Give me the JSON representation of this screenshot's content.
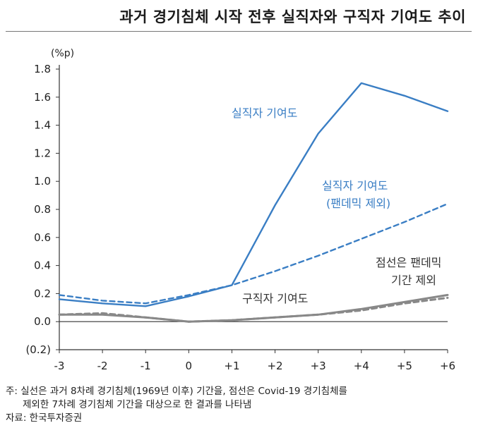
{
  "title": "과거 경기침체 시작 전후 실직자와 구직자 기여도 추이",
  "chart_data": {
    "type": "line",
    "title": "과거 경기침체 시작 전후 실직자와 구직자 기여도 추이",
    "unit": "(%p)",
    "x": [
      -3,
      -2,
      -1,
      0,
      1,
      2,
      3,
      4,
      5,
      6
    ],
    "x_tick_labels": [
      "-3",
      "-2",
      "-1",
      "0",
      "+1",
      "+2",
      "+3",
      "+4",
      "+5",
      "+6"
    ],
    "y_ticks": [
      -0.2,
      0.0,
      0.2,
      0.4,
      0.6,
      0.8,
      1.0,
      1.2,
      1.4,
      1.6,
      1.8
    ],
    "y_tick_labels": [
      "(0.2)",
      "0.0",
      "0.2",
      "0.4",
      "0.6",
      "0.8",
      "1.0",
      "1.2",
      "1.4",
      "1.6",
      "1.8"
    ],
    "ylim": [
      -0.2,
      1.8
    ],
    "grid": false,
    "series": [
      {
        "name": "실직자 기여도",
        "values": [
          0.16,
          0.13,
          0.11,
          0.18,
          0.26,
          0.83,
          1.34,
          1.7,
          1.61,
          1.5
        ],
        "color": "#3a7ec4",
        "dashed": false
      },
      {
        "name": "실직자 기여도 (팬데믹 제외)",
        "values": [
          0.19,
          0.15,
          0.13,
          0.19,
          0.26,
          0.36,
          0.47,
          0.59,
          0.71,
          0.84
        ],
        "color": "#3a7ec4",
        "dashed": true
      },
      {
        "name": "구직자 기여도",
        "values": [
          0.05,
          0.05,
          0.03,
          0.0,
          0.01,
          0.03,
          0.05,
          0.09,
          0.14,
          0.19
        ],
        "color": "#888888",
        "dashed": false
      },
      {
        "name": "구직자 기여도 (팬데믹 제외)",
        "values": [
          0.05,
          0.06,
          0.03,
          0.0,
          0.01,
          0.03,
          0.05,
          0.08,
          0.13,
          0.17
        ],
        "color": "#888888",
        "dashed": true
      }
    ],
    "annotations": {
      "unemployed": "실직자 기여도",
      "unemployed_ex_line1": "실직자 기여도",
      "unemployed_ex_line2": "(팬데믹 제외)",
      "jobseeker": "구직자 기여도",
      "dashed_note_line1": "점선은 팬데믹",
      "dashed_note_line2": "기간 제외"
    }
  },
  "notes": {
    "line1": "주: 실선은 과거 8차례 경기침체(1969년 이후) 기간을, 점선은 Covid-19 경기침체를",
    "line2": "제외한 7차례 경기침체 기간을 대상으로 한 결과를 나타냄",
    "source": "자료: 한국투자증권"
  }
}
